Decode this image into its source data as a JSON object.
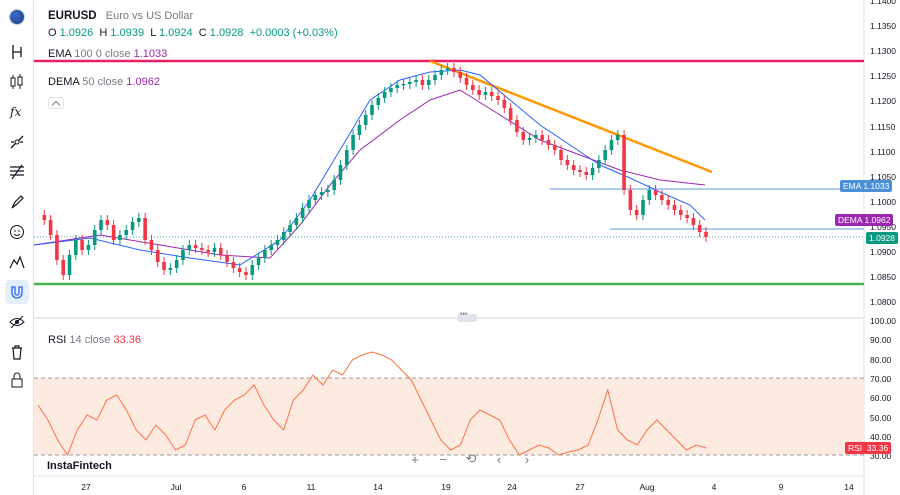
{
  "symbol": {
    "ticker": "EURUSD",
    "name": "Euro vs US Dollar",
    "ohlc": {
      "o_label": "O",
      "o": "1.0926",
      "h_label": "H",
      "h": "1.0939",
      "l_label": "L",
      "l": "1.0924",
      "c_label": "C",
      "c": "1.0928",
      "change": "+0.0003 (+0.03%)"
    }
  },
  "indicators": {
    "ema": {
      "name": "EMA",
      "params": "100 0 close",
      "value": "1.1033"
    },
    "dema": {
      "name": "DEMA",
      "params": "50 close",
      "value": "1.0962"
    },
    "rsi": {
      "name": "RSI",
      "params": "14 close",
      "value": "33.36"
    }
  },
  "price_axis": [
    "1.1400",
    "1.1350",
    "1.1300",
    "1.1250",
    "1.1200",
    "1.1150",
    "1.1100",
    "1.1050",
    "1.1000",
    "1.0950",
    "1.0900",
    "1.0850",
    "1.0800"
  ],
  "rsi_axis": [
    "100.00",
    "90.00",
    "80.00",
    "70.00",
    "60.00",
    "50.00",
    "40.00",
    "30.00"
  ],
  "price_tags": {
    "ema_label": "EMA",
    "ema_value": "1.1033",
    "dema_label": "DEMA",
    "dema_value": "1.0962",
    "last_value": "1.0928",
    "rsi_label": "RSI",
    "rsi_value": "33.36"
  },
  "time_axis": [
    "27",
    "Jul",
    "6",
    "11",
    "14",
    "19",
    "24",
    "27",
    "Aug",
    "4",
    "9",
    "14"
  ],
  "watermark": "InstaFintech",
  "zoom_controls": [
    "+",
    "−",
    "⟲",
    "‹",
    "›"
  ],
  "toolbar_icons": [
    "flag-icon",
    "crosshair-icon",
    "trend-line-icon",
    "fib-icon",
    "pattern-icon",
    "prediction-icon",
    "brush-icon",
    "emoji-icon",
    "measure-icon",
    "magnet-icon",
    "eye-icon",
    "trash-icon",
    "lock-icon"
  ],
  "colors": {
    "up": "#089981",
    "down": "#f23645",
    "ema": "#9c27b0",
    "dema": "#2962ff",
    "resistance": "#e91e63",
    "support": "#4caf50",
    "trendline": "#ff9800",
    "rsi_line": "#ff7043",
    "rsi_band": "#fde7dc"
  }
}
